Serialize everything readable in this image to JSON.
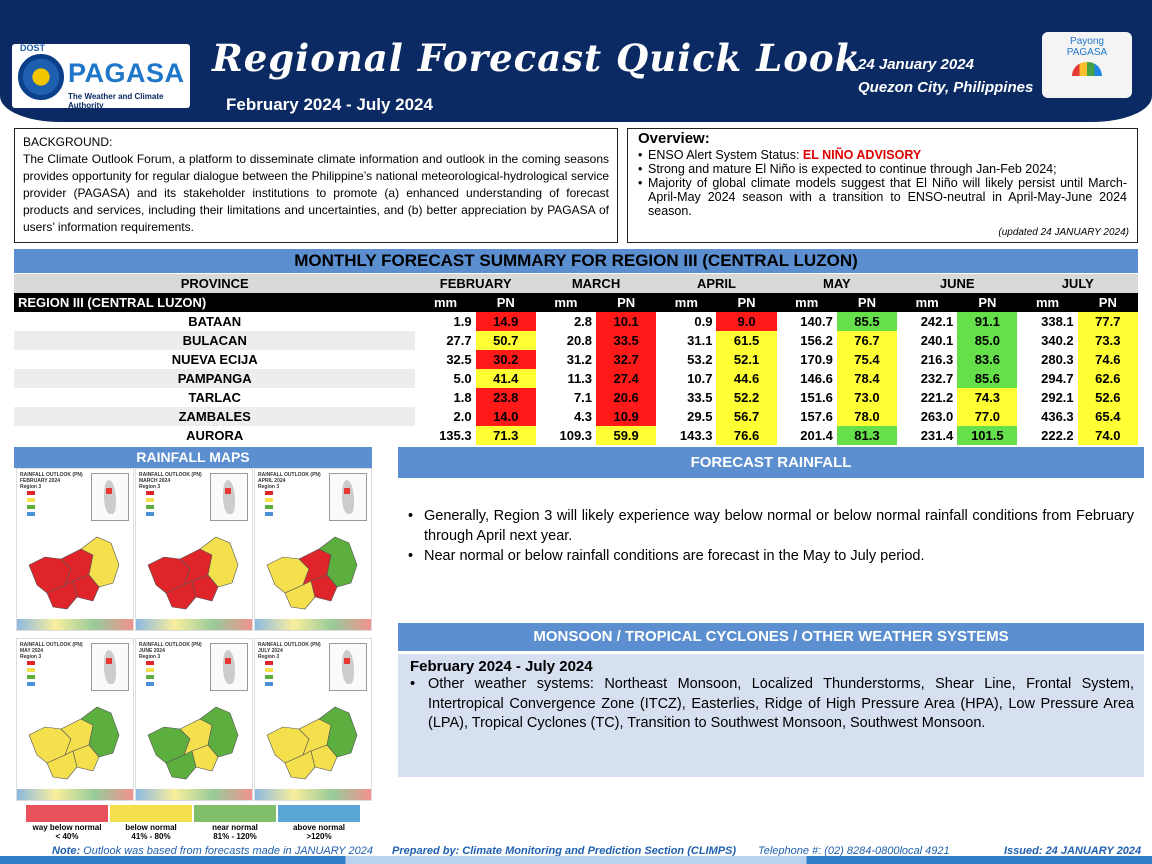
{
  "header": {
    "dost": "DOST",
    "agency": "PAGASA",
    "tagline": "The Weather and Climate Authority",
    "title": "Regional Forecast Quick Look",
    "period": "February 2024 - July 2024",
    "date": "24 January 2024",
    "location": "Quezon City, Philippines",
    "payong_line1": "Payong",
    "payong_line2": "PAGASA"
  },
  "background": {
    "title": "BACKGROUND:",
    "body": "The Climate Outlook Forum, a platform to disseminate climate information and outlook in the coming seasons provides opportunity for regular dialogue between the Philippine’s national meteorological-hydrological service provider (PAGASA) and its stakeholder institutions to promote (a) enhanced understanding of forecast products and services, including their limitations and uncertainties, and (b) better appreciation by PAGASA of users’ information requirements."
  },
  "overview": {
    "title": "Overview:",
    "enso_label": "ENSO Alert System Status: ",
    "enso_status": "EL NIÑO ADVISORY",
    "item2": "Strong and mature El Niño is expected to continue through Jan-Feb 2024;",
    "item3": "Majority of global climate models suggest that El Niño will likely persist until March-April-May 2024 season with a transition to ENSO-neutral in April-May-June 2024 season.",
    "updated": "(updated 24 JANUARY 2024)"
  },
  "table": {
    "title": "MONTHLY FORECAST SUMMARY FOR REGION III (CENTRAL LUZON)",
    "province_header": "PROVINCE",
    "region_label": "REGION III (CENTRAL LUZON)",
    "months": [
      "FEBRUARY",
      "MARCH",
      "APRIL",
      "MAY",
      "JUNE",
      "JULY"
    ],
    "mm_label": "mm",
    "pn_label": "PN",
    "rows": [
      {
        "name": "BATAAN",
        "vals": [
          [
            "1.9",
            "14.9",
            "red"
          ],
          [
            "2.8",
            "10.1",
            "red"
          ],
          [
            "0.9",
            "9.0",
            "red"
          ],
          [
            "140.7",
            "85.5",
            "grn"
          ],
          [
            "242.1",
            "91.1",
            "grn"
          ],
          [
            "338.1",
            "77.7",
            "yel"
          ]
        ]
      },
      {
        "name": "BULACAN",
        "vals": [
          [
            "27.7",
            "50.7",
            "yel"
          ],
          [
            "20.8",
            "33.5",
            "red"
          ],
          [
            "31.1",
            "61.5",
            "yel"
          ],
          [
            "156.2",
            "76.7",
            "yel"
          ],
          [
            "240.1",
            "85.0",
            "grn"
          ],
          [
            "340.2",
            "73.3",
            "yel"
          ]
        ]
      },
      {
        "name": "NUEVA ECIJA",
        "vals": [
          [
            "32.5",
            "30.2",
            "red"
          ],
          [
            "31.2",
            "32.7",
            "red"
          ],
          [
            "53.2",
            "52.1",
            "yel"
          ],
          [
            "170.9",
            "75.4",
            "yel"
          ],
          [
            "216.3",
            "83.6",
            "grn"
          ],
          [
            "280.3",
            "74.6",
            "yel"
          ]
        ]
      },
      {
        "name": "PAMPANGA",
        "vals": [
          [
            "5.0",
            "41.4",
            "yel"
          ],
          [
            "11.3",
            "27.4",
            "red"
          ],
          [
            "10.7",
            "44.6",
            "yel"
          ],
          [
            "146.6",
            "78.4",
            "yel"
          ],
          [
            "232.7",
            "85.6",
            "grn"
          ],
          [
            "294.7",
            "62.6",
            "yel"
          ]
        ]
      },
      {
        "name": "TARLAC",
        "vals": [
          [
            "1.8",
            "23.8",
            "red"
          ],
          [
            "7.1",
            "20.6",
            "red"
          ],
          [
            "33.5",
            "52.2",
            "yel"
          ],
          [
            "151.6",
            "73.0",
            "yel"
          ],
          [
            "221.2",
            "74.3",
            "yel"
          ],
          [
            "292.1",
            "52.6",
            "yel"
          ]
        ]
      },
      {
        "name": "ZAMBALES",
        "vals": [
          [
            "2.0",
            "14.0",
            "red"
          ],
          [
            "4.3",
            "10.9",
            "red"
          ],
          [
            "29.5",
            "56.7",
            "yel"
          ],
          [
            "157.6",
            "78.0",
            "yel"
          ],
          [
            "263.0",
            "77.0",
            "yel"
          ],
          [
            "436.3",
            "65.4",
            "yel"
          ]
        ]
      },
      {
        "name": "AURORA",
        "vals": [
          [
            "135.3",
            "71.3",
            "yel"
          ],
          [
            "109.3",
            "59.9",
            "yel"
          ],
          [
            "143.3",
            "76.6",
            "yel"
          ],
          [
            "201.4",
            "81.3",
            "grn"
          ],
          [
            "231.4",
            "101.5",
            "grn"
          ],
          [
            "222.2",
            "74.0",
            "yel"
          ]
        ]
      }
    ]
  },
  "maps": {
    "title": "RAINFALL MAPS",
    "items": [
      {
        "label": "RAINFALL OUTLOOK (PN)\nFEBRUARY 2024\nRegion 3"
      },
      {
        "label": "RAINFALL OUTLOOK (PN)\nMARCH 2024\nRegion 3"
      },
      {
        "label": "RAINFALL OUTLOOK (PN)\nAPRIL 2024\nRegion 3"
      },
      {
        "label": "RAINFALL OUTLOOK (PN)\nMAY 2024\nRegion 3"
      },
      {
        "label": "RAINFALL OUTLOOK (PN)\nJUNE 2024\nRegion 3"
      },
      {
        "label": "RAINFALL OUTLOOK (PN)\nJULY 2024\nRegion 3"
      }
    ],
    "legend": [
      {
        "label": "way below normal",
        "range": "< 40%",
        "color": "#e8505b"
      },
      {
        "label": "below normal",
        "range": "41%  -  80%",
        "color": "#f4e04d"
      },
      {
        "label": "near normal",
        "range": "81% - 120%",
        "color": "#7fbf6a"
      },
      {
        "label": "above normal",
        "range": ">120%",
        "color": "#5aa6d6"
      }
    ]
  },
  "forecast": {
    "title": "FORECAST RAINFALL",
    "items": [
      "Generally, Region 3 will likely experience way below normal or below normal rainfall conditions from February through April next year.",
      "Near normal or below rainfall conditions are forecast in the May to July period."
    ]
  },
  "monsoon": {
    "title": "MONSOON  / TROPICAL CYCLONES / OTHER WEATHER SYSTEMS",
    "period": "February 2024 - July 2024",
    "item": "Other weather systems: Northeast Monsoon, Localized Thunderstorms, Shear Line, Frontal System, Intertropical Convergence Zone (ITCZ), Easterlies, Ridge of High Pressure Area (HPA), Low Pressure Area (LPA), Tropical Cyclones (TC), Transition to Southwest Monsoon, Southwest Monsoon."
  },
  "footer": {
    "note_label": "Note:",
    "note": " Outlook was based from forecasts made in JANUARY 2024",
    "prepared": "Prepared by: Climate Monitoring and Prediction Section (CLIMPS)",
    "telephone": "Telephone #: (02) 8284-0800local 4921",
    "issued": "Issued: 24 JANUARY 2024"
  },
  "colors": {
    "header_bg": "#0b2a63",
    "section_blue": "#5b8fd0",
    "pn_red": "#ff1a1a",
    "pn_yellow": "#ffff33",
    "pn_green": "#66e04a",
    "advisory_red": "#e00000"
  }
}
